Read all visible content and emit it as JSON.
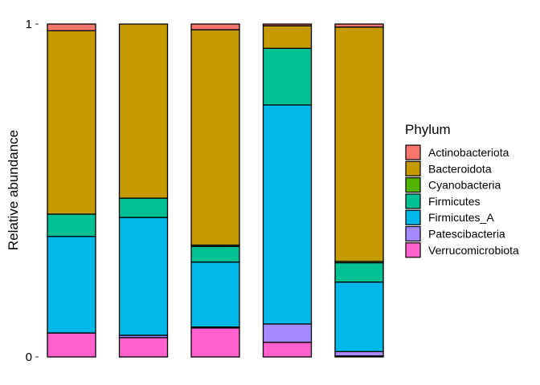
{
  "chart_data": {
    "type": "bar",
    "stacked": true,
    "categories": [
      "",
      "",
      "",
      "",
      ""
    ],
    "ylabel": "Relative abundance",
    "xlabel": "",
    "ylim": [
      0,
      1
    ],
    "y_ticks": [
      0,
      1
    ],
    "y_tick_labels": [
      "0",
      "1"
    ],
    "grid": false,
    "legend": {
      "title": "Phylum",
      "position": "right"
    },
    "series": [
      {
        "name": "Verrucomicrobiota",
        "color": "#FF61CC",
        "values": [
          0.072,
          0.058,
          0.087,
          0.044,
          0.003
        ]
      },
      {
        "name": "Patescibacteria",
        "color": "#A58AFF",
        "values": [
          0.0,
          0.007,
          0.003,
          0.055,
          0.013
        ]
      },
      {
        "name": "Firmicutes_A",
        "color": "#00B8E7",
        "values": [
          0.29,
          0.354,
          0.195,
          0.658,
          0.209
        ]
      },
      {
        "name": "Firmicutes",
        "color": "#00C094",
        "values": [
          0.067,
          0.058,
          0.047,
          0.17,
          0.058
        ]
      },
      {
        "name": "Cyanobacteria",
        "color": "#53B400",
        "values": [
          0.0,
          0.0,
          0.004,
          0.0,
          0.004
        ]
      },
      {
        "name": "Bacteroidota",
        "color": "#C49A00",
        "values": [
          0.551,
          0.523,
          0.647,
          0.068,
          0.704
        ]
      },
      {
        "name": "Actinobacteriota",
        "color": "#F8766D",
        "values": [
          0.02,
          0.0,
          0.017,
          0.005,
          0.009
        ]
      }
    ],
    "legend_order": [
      "Actinobacteriota",
      "Bacteroidota",
      "Cyanobacteria",
      "Firmicutes",
      "Firmicutes_A",
      "Patescibacteria",
      "Verrucomicrobiota"
    ]
  }
}
